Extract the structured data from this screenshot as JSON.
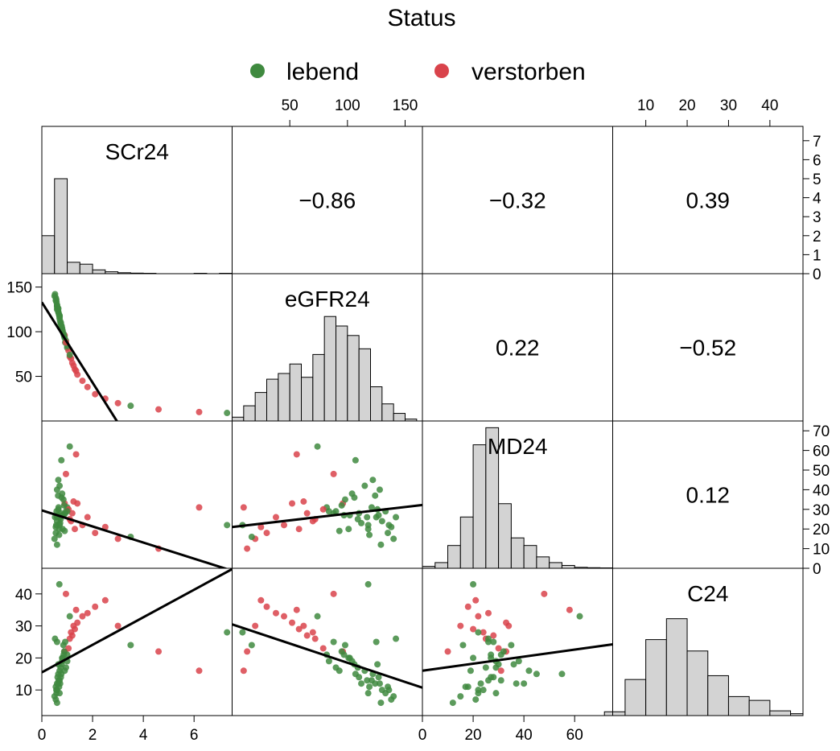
{
  "legend": {
    "title": "Status",
    "items": [
      {
        "label": "lebend",
        "color": "#3f8a3f"
      },
      {
        "label": "verstorben",
        "color": "#d9434b"
      }
    ]
  },
  "chart_data": {
    "type": "scatter",
    "variables": [
      "SCr24",
      "eGFR24",
      "MD24",
      "C24"
    ],
    "ranges": {
      "SCr24": [
        0,
        7.5
      ],
      "eGFR24": [
        0,
        165
      ],
      "MD24": [
        0,
        75
      ],
      "C24": [
        2,
        48
      ]
    },
    "ticks": {
      "SCr24": [
        0,
        2,
        4,
        6
      ],
      "eGFR24": [
        50,
        100,
        150
      ],
      "MD24": [
        0,
        20,
        40,
        60
      ],
      "C24": [
        10,
        20,
        30,
        40
      ],
      "histcount": [
        0,
        1,
        2,
        3,
        4,
        5,
        6,
        7
      ],
      "MD24_right": [
        0,
        10,
        20,
        30,
        40,
        50,
        60,
        70
      ]
    },
    "correlations": [
      {
        "row": 0,
        "col": 1,
        "value": "−0.86"
      },
      {
        "row": 0,
        "col": 2,
        "value": "−0.32"
      },
      {
        "row": 0,
        "col": 3,
        "value": "0.39"
      },
      {
        "row": 1,
        "col": 2,
        "value": "0.22"
      },
      {
        "row": 1,
        "col": 3,
        "value": "−0.52"
      },
      {
        "row": 2,
        "col": 3,
        "value": "0.12"
      }
    ],
    "histograms": {
      "SCr24": {
        "edges": [
          0,
          0.5,
          1,
          1.5,
          2,
          2.5,
          3,
          3.5,
          4,
          4.5,
          5,
          5.5,
          6,
          6.5,
          7,
          7.5
        ],
        "counts": [
          2,
          5,
          0.6,
          0.5,
          0.2,
          0.1,
          0.05,
          0.03,
          0.02,
          0,
          0,
          0,
          0.02,
          0,
          0.02
        ]
      },
      "eGFR24": {
        "edges": [
          0,
          10,
          20,
          30,
          40,
          50,
          60,
          70,
          80,
          90,
          100,
          110,
          120,
          130,
          140,
          150,
          160,
          170
        ],
        "counts": [
          0.2,
          0.8,
          1.5,
          2.2,
          2.5,
          3.0,
          2.3,
          3.5,
          5.5,
          5.0,
          4.5,
          3.8,
          1.8,
          0.9,
          0.4,
          0.1,
          0
        ]
      },
      "MD24": {
        "edges": [
          0,
          5,
          10,
          15,
          20,
          25,
          30,
          35,
          40,
          45,
          50,
          55,
          60,
          65,
          70,
          75
        ],
        "counts": [
          0.1,
          0.3,
          1.2,
          2.7,
          6.5,
          7.4,
          3.4,
          1.6,
          1.2,
          0.6,
          0.3,
          0.15,
          0.05,
          0.03,
          0.02
        ]
      },
      "C24": {
        "edges": [
          0,
          5,
          10,
          15,
          20,
          25,
          30,
          35,
          40,
          45,
          50
        ],
        "counts": [
          0.2,
          1.9,
          4.0,
          5.1,
          3.4,
          2.1,
          1.0,
          0.8,
          0.25,
          0.1
        ]
      }
    },
    "regressions": [
      {
        "row": 1,
        "col": 0,
        "intercept": 133,
        "slope": -45
      },
      {
        "row": 2,
        "col": 0,
        "intercept": 29.5,
        "slope": -4.1
      },
      {
        "row": 3,
        "col": 0,
        "intercept": 15.5,
        "slope": 4.3
      },
      {
        "row": 2,
        "col": 1,
        "intercept": 21,
        "slope": 0.068
      },
      {
        "row": 3,
        "col": 1,
        "intercept": 30.5,
        "slope": -0.12
      },
      {
        "row": 3,
        "col": 2,
        "intercept": 16,
        "slope": 0.11
      }
    ],
    "points": {
      "columns": [
        "SCr24",
        "eGFR24",
        "MD24",
        "C24",
        "status"
      ],
      "rows": [
        [
          0.55,
          135,
          18,
          11,
          0
        ],
        [
          0.7,
          118,
          22,
          9,
          0
        ],
        [
          0.65,
          126,
          30,
          18,
          0
        ],
        [
          0.8,
          102,
          27,
          20,
          0
        ],
        [
          0.9,
          96,
          33,
          22,
          1
        ],
        [
          0.6,
          128,
          40,
          12,
          0
        ],
        [
          1.1,
          72,
          25,
          26,
          1
        ],
        [
          0.75,
          110,
          28,
          14,
          0
        ],
        [
          0.5,
          140,
          15,
          8,
          0
        ],
        [
          1.3,
          58,
          20,
          29,
          1
        ],
        [
          0.85,
          98,
          35,
          24,
          0
        ],
        [
          0.95,
          90,
          29,
          17,
          0
        ],
        [
          1.6,
          45,
          22,
          33,
          1
        ],
        [
          0.7,
          117,
          26,
          13,
          0
        ],
        [
          0.6,
          130,
          24,
          10,
          0
        ],
        [
          1.0,
          82,
          31,
          21,
          0
        ],
        [
          2.1,
          30,
          18,
          36,
          1
        ],
        [
          0.65,
          122,
          45,
          15,
          0
        ],
        [
          0.8,
          104,
          38,
          19,
          0
        ],
        [
          1.2,
          65,
          28,
          27,
          1
        ],
        [
          0.55,
          138,
          21,
          7,
          0
        ],
        [
          0.9,
          93,
          19,
          16,
          0
        ],
        [
          1.4,
          52,
          33,
          31,
          1
        ],
        [
          0.72,
          112,
          23,
          12,
          0
        ],
        [
          0.6,
          125,
          26,
          25,
          0
        ],
        [
          1.05,
          79,
          30,
          23,
          1
        ],
        [
          0.78,
          106,
          36,
          18,
          0
        ],
        [
          0.68,
          119,
          17,
          11,
          0
        ],
        [
          2.5,
          25,
          21,
          38,
          1
        ],
        [
          0.62,
          127,
          27,
          14,
          0
        ],
        [
          0.88,
          95,
          32,
          22,
          0
        ],
        [
          1.15,
          70,
          24,
          28,
          1
        ],
        [
          0.58,
          133,
          29,
          9,
          0
        ],
        [
          0.82,
          101,
          20,
          20,
          0
        ],
        [
          3.0,
          20,
          15,
          30,
          1
        ],
        [
          0.7,
          115,
          42,
          16,
          0
        ],
        [
          1.8,
          38,
          26,
          34,
          1
        ],
        [
          0.92,
          88,
          28,
          25,
          0
        ],
        [
          0.66,
          121,
          31,
          13,
          0
        ],
        [
          4.6,
          13,
          10,
          22,
          1
        ],
        [
          0.74,
          109,
          25,
          17,
          0
        ],
        [
          1.25,
          62,
          34,
          30,
          1
        ],
        [
          0.57,
          136,
          22,
          10,
          0
        ],
        [
          6.2,
          10,
          31,
          16,
          1
        ],
        [
          0.86,
          97,
          27,
          21,
          0
        ],
        [
          3.5,
          17,
          16,
          24,
          0
        ],
        [
          0.64,
          124,
          37,
          12,
          0
        ],
        [
          7.3,
          9,
          22,
          28,
          0
        ],
        [
          1.0,
          84,
          29,
          19,
          0
        ],
        [
          0.77,
          107,
          55,
          15,
          0
        ],
        [
          0.69,
          118,
          20,
          43,
          0
        ],
        [
          1.35,
          56,
          58,
          35,
          1
        ],
        [
          0.6,
          129,
          12,
          6,
          0
        ],
        [
          0.95,
          88,
          48,
          40,
          1
        ],
        [
          0.52,
          142,
          26,
          26,
          0
        ],
        [
          1.1,
          74,
          62,
          33,
          0
        ]
      ]
    }
  }
}
